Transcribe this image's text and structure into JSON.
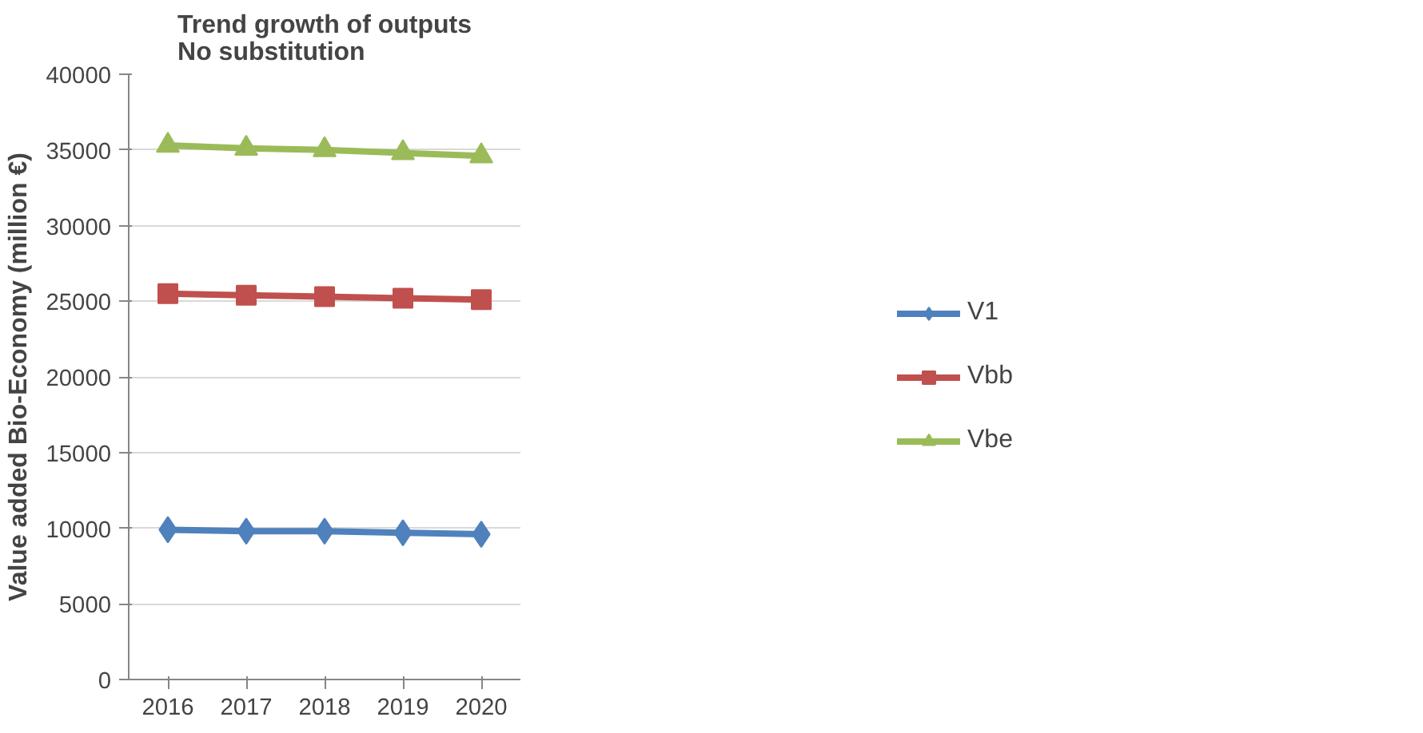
{
  "chart_data": {
    "type": "line",
    "title": "Trend growth of outputs\nNo substitution",
    "ylabel": "Value added Bio-Economy (million €)",
    "categories": [
      "2016",
      "2017",
      "2018",
      "2019",
      "2020"
    ],
    "series": [
      {
        "name": "V1",
        "color": "#4f81bd",
        "marker": "diamond",
        "values": [
          9900,
          9800,
          9800,
          9700,
          9600
        ]
      },
      {
        "name": "Vbb",
        "color": "#c0504d",
        "marker": "square",
        "values": [
          25500,
          25400,
          25300,
          25200,
          25100
        ]
      },
      {
        "name": "Vbe",
        "color": "#9bbb59",
        "marker": "triangle",
        "values": [
          35300,
          35100,
          35000,
          34800,
          34600
        ]
      }
    ],
    "ylim": [
      0,
      40000
    ],
    "yticks": [
      0,
      5000,
      10000,
      15000,
      20000,
      25000,
      30000,
      35000,
      40000
    ],
    "grid": "y",
    "legend": "right",
    "line_style": "solid"
  }
}
